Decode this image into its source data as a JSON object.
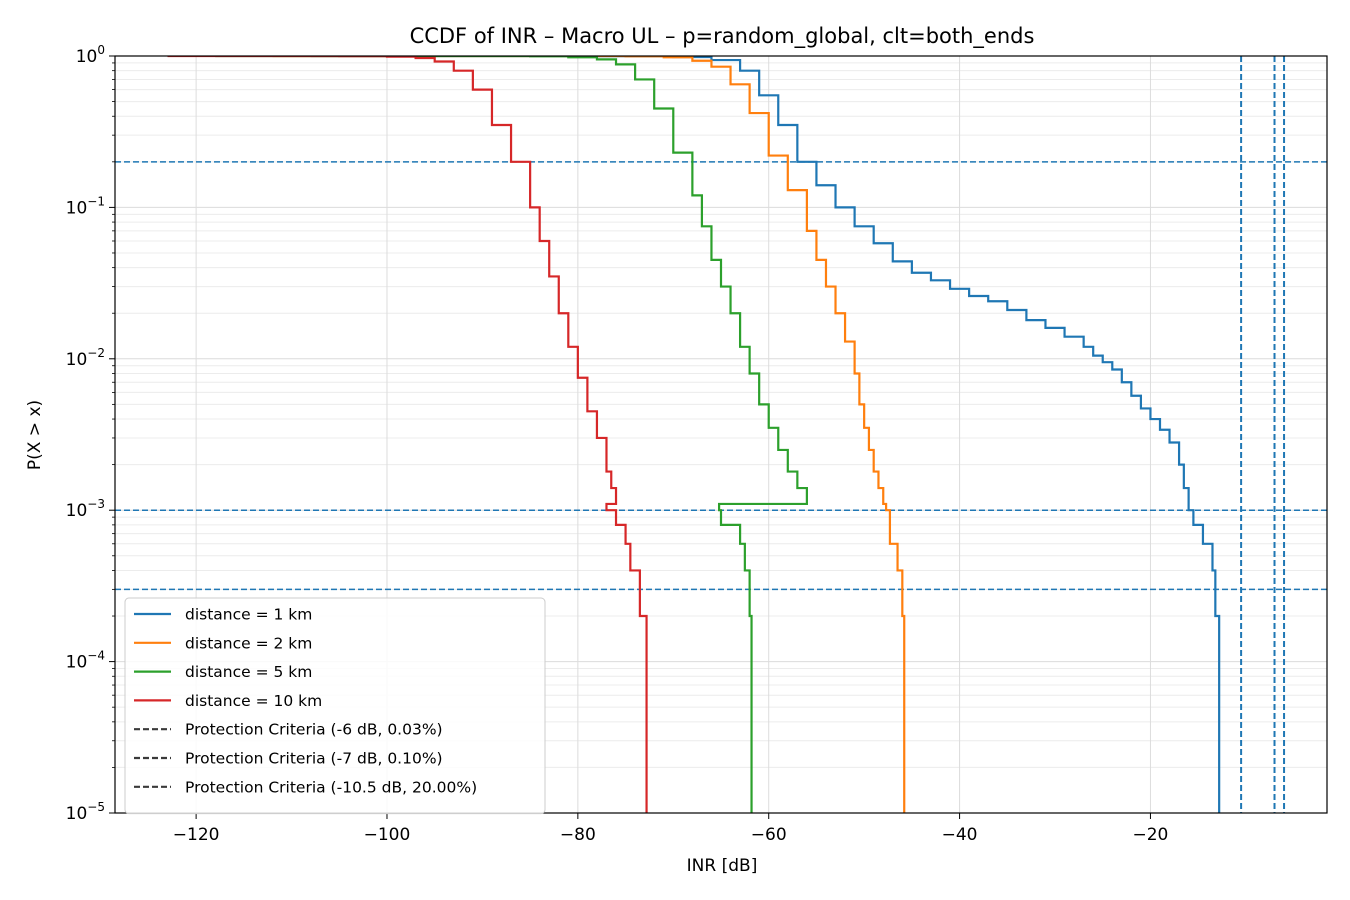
{
  "chart_data": {
    "type": "line",
    "title": "CCDF of INR – Macro UL – p=random_global, clt=both_ends",
    "xlabel": "INR [dB]",
    "ylabel": "P(X > x)",
    "xlim": [
      -128.5,
      -1.5
    ],
    "ylim": [
      1e-05,
      1
    ],
    "yscale": "log",
    "grid": true,
    "legend_position": "lower-left",
    "x_ticks": [
      -120,
      -100,
      -80,
      -60,
      -40,
      -20
    ],
    "x_tick_labels": [
      "−120",
      "−100",
      "−80",
      "−60",
      "−40",
      "−20"
    ],
    "y_ticks": [
      {
        "value": 1,
        "base": "10",
        "exp": "0"
      },
      {
        "value": 0.1,
        "base": "10",
        "exp": "−1"
      },
      {
        "value": 0.01,
        "base": "10",
        "exp": "−2"
      },
      {
        "value": 0.001,
        "base": "10",
        "exp": "−3"
      },
      {
        "value": 0.0001,
        "base": "10",
        "exp": "−4"
      },
      {
        "value": 1e-05,
        "base": "10",
        "exp": "−5"
      }
    ],
    "series": [
      {
        "name": "distance = 1 km",
        "color": "#1f77b4",
        "points": [
          [
            -108,
            1
          ],
          [
            -80,
            0.998
          ],
          [
            -75,
            0.995
          ],
          [
            -70,
            0.985
          ],
          [
            -66,
            0.94
          ],
          [
            -63,
            0.8
          ],
          [
            -61,
            0.55
          ],
          [
            -59,
            0.35
          ],
          [
            -57,
            0.2
          ],
          [
            -55,
            0.14
          ],
          [
            -53,
            0.1
          ],
          [
            -51,
            0.075
          ],
          [
            -49,
            0.058
          ],
          [
            -47,
            0.044
          ],
          [
            -45,
            0.037
          ],
          [
            -43,
            0.033
          ],
          [
            -41,
            0.029
          ],
          [
            -39,
            0.026
          ],
          [
            -37,
            0.024
          ],
          [
            -35,
            0.021
          ],
          [
            -33,
            0.018
          ],
          [
            -31,
            0.016
          ],
          [
            -29,
            0.014
          ],
          [
            -27,
            0.012
          ],
          [
            -26,
            0.0105
          ],
          [
            -25,
            0.0095
          ],
          [
            -24,
            0.0085
          ],
          [
            -23,
            0.007
          ],
          [
            -22,
            0.0057
          ],
          [
            -21,
            0.0047
          ],
          [
            -20,
            0.004
          ],
          [
            -19,
            0.0034
          ],
          [
            -18,
            0.0028
          ],
          [
            -17,
            0.002
          ],
          [
            -16.5,
            0.0014
          ],
          [
            -16,
            0.001
          ],
          [
            -15.5,
            0.0008
          ],
          [
            -14.5,
            0.0006
          ],
          [
            -13.5,
            0.0004
          ],
          [
            -13.2,
            0.0002
          ],
          [
            -12.8,
            1e-05
          ]
        ]
      },
      {
        "name": "distance = 2 km",
        "color": "#ff7f0e",
        "points": [
          [
            -112,
            1
          ],
          [
            -80,
            0.999
          ],
          [
            -75,
            0.995
          ],
          [
            -71,
            0.98
          ],
          [
            -68,
            0.93
          ],
          [
            -66,
            0.85
          ],
          [
            -64,
            0.65
          ],
          [
            -62,
            0.42
          ],
          [
            -60,
            0.22
          ],
          [
            -58,
            0.13
          ],
          [
            -56,
            0.07
          ],
          [
            -55,
            0.045
          ],
          [
            -54,
            0.03
          ],
          [
            -53,
            0.02
          ],
          [
            -52,
            0.013
          ],
          [
            -51,
            0.008
          ],
          [
            -50.5,
            0.005
          ],
          [
            -50,
            0.0035
          ],
          [
            -49.5,
            0.0025
          ],
          [
            -49,
            0.0018
          ],
          [
            -48.5,
            0.0014
          ],
          [
            -48,
            0.0011
          ],
          [
            -47.7,
            0.001
          ],
          [
            -47.3,
            0.0006
          ],
          [
            -46.5,
            0.0004
          ],
          [
            -46,
            0.0002
          ],
          [
            -45.8,
            1e-05
          ]
        ]
      },
      {
        "name": "distance = 5 km",
        "color": "#2ca02c",
        "points": [
          [
            -118,
            1
          ],
          [
            -90,
            0.999
          ],
          [
            -85,
            0.995
          ],
          [
            -81,
            0.98
          ],
          [
            -78,
            0.95
          ],
          [
            -76,
            0.88
          ],
          [
            -74,
            0.7
          ],
          [
            -72,
            0.45
          ],
          [
            -70,
            0.23
          ],
          [
            -68,
            0.12
          ],
          [
            -67,
            0.075
          ],
          [
            -66,
            0.045
          ],
          [
            -65,
            0.03
          ],
          [
            -64,
            0.02
          ],
          [
            -63,
            0.012
          ],
          [
            -62,
            0.008
          ],
          [
            -61,
            0.005
          ],
          [
            -60,
            0.0035
          ],
          [
            -59,
            0.0025
          ],
          [
            -58,
            0.0018
          ],
          [
            -57,
            0.0014
          ],
          [
            -56,
            0.0011
          ],
          [
            -65.2,
            0.001
          ],
          [
            -65,
            0.0008
          ],
          [
            -63,
            0.0006
          ],
          [
            -62.5,
            0.0004
          ],
          [
            -62,
            0.0002
          ],
          [
            -61.8,
            1e-05
          ]
        ]
      },
      {
        "name": "distance = 10 km",
        "color": "#d62728",
        "points": [
          [
            -123,
            1
          ],
          [
            -105,
            0.998
          ],
          [
            -100,
            0.99
          ],
          [
            -97,
            0.97
          ],
          [
            -95,
            0.92
          ],
          [
            -93,
            0.8
          ],
          [
            -91,
            0.6
          ],
          [
            -89,
            0.35
          ],
          [
            -87,
            0.2
          ],
          [
            -85,
            0.1
          ],
          [
            -84,
            0.06
          ],
          [
            -83,
            0.035
          ],
          [
            -82,
            0.02
          ],
          [
            -81,
            0.012
          ],
          [
            -80,
            0.0075
          ],
          [
            -79,
            0.0045
          ],
          [
            -78,
            0.003
          ],
          [
            -77,
            0.0018
          ],
          [
            -76.5,
            0.0014
          ],
          [
            -76,
            0.0011
          ],
          [
            -77,
            0.001
          ],
          [
            -76,
            0.0008
          ],
          [
            -75,
            0.0006
          ],
          [
            -74.5,
            0.0004
          ],
          [
            -73.5,
            0.0002
          ],
          [
            -72.8,
            1e-05
          ]
        ]
      }
    ],
    "protection_criteria": [
      {
        "name": "Protection Criteria (-6 dB, 0.03%)",
        "inr_db": -6,
        "probability": 0.0003
      },
      {
        "name": "Protection Criteria (-7 dB, 0.10%)",
        "inr_db": -7,
        "probability": 0.001
      },
      {
        "name": "Protection Criteria (-10.5 dB, 20.00%)",
        "inr_db": -10.5,
        "probability": 0.2
      }
    ],
    "criteria_color": "#1f77b4",
    "legend_dash_color": "#3a3a3a"
  }
}
